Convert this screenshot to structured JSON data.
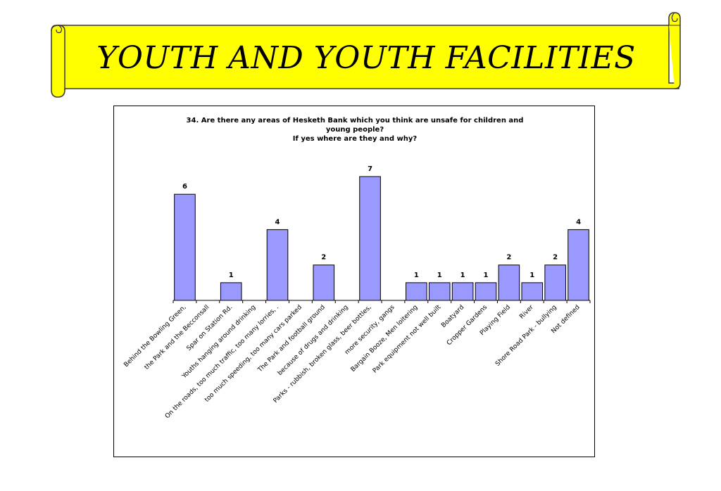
{
  "banner": {
    "title": "YOUTH AND YOUTH FACILITIES",
    "fill_color": "#ffff00"
  },
  "chart_data": {
    "type": "bar",
    "title_lines": [
      "34. Are there any areas of Hesketh Bank which you think are unsafe for children and",
      "young people?",
      "If yes where are they and why?"
    ],
    "categories": [
      "Behind the Bowling Green,",
      "the Park and the Becconsall",
      "Spar on Station Rd.",
      "Youths hanging around drinking",
      "On the roads, too much traffic, too many lorries, .",
      "too much speeding, too many cars parked",
      "The Park and football ground",
      "because of drugs and drinking",
      "Parks - rubbish, broken glass, beer bottles,",
      "more security, gangs",
      "Bargain Booze, Men loitering",
      "Park equipment not well built",
      "Boatyard",
      "Cropper Gardens",
      "Playing Field",
      "River",
      "Shore Road Park - bullying",
      "Not defined"
    ],
    "values": [
      6,
      0,
      1,
      0,
      4,
      0,
      2,
      0,
      7,
      0,
      1,
      1,
      1,
      1,
      2,
      1,
      2,
      4
    ],
    "data_labels": [
      "6",
      "",
      "1",
      "",
      "4",
      "",
      "2",
      "",
      "7",
      "",
      "1",
      "1",
      "1",
      "1",
      "2",
      "1",
      "2",
      "4"
    ],
    "ylim": [
      0,
      7
    ],
    "bar_color": "#9999ff",
    "grid": false,
    "legend": "none"
  }
}
